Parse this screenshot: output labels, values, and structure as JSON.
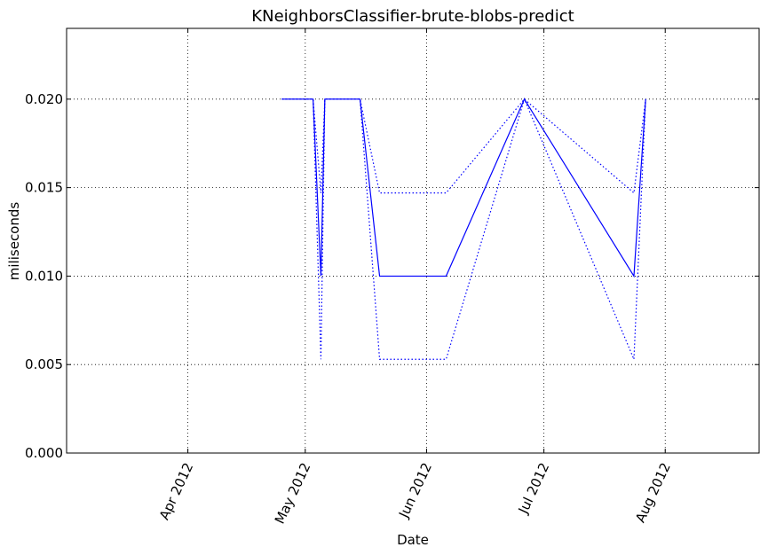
{
  "chart_data": {
    "type": "line",
    "title": "KNeighborsClassifier-brute-blobs-predict",
    "xlabel": "Date",
    "ylabel": "miliseconds",
    "xlim": [
      "2012-03-01",
      "2012-08-25"
    ],
    "ylim": [
      0,
      0.024
    ],
    "grid": true,
    "x_tick_labels": [
      {
        "date": "2012-04-01",
        "label": "Apr 2012"
      },
      {
        "date": "2012-05-01",
        "label": "May 2012"
      },
      {
        "date": "2012-06-01",
        "label": "Jun 2012"
      },
      {
        "date": "2012-07-01",
        "label": "Jul 2012"
      },
      {
        "date": "2012-08-01",
        "label": "Aug 2012"
      }
    ],
    "y_ticks": [
      {
        "value": 0.0,
        "label": "0.000"
      },
      {
        "value": 0.005,
        "label": "0.005"
      },
      {
        "value": 0.01,
        "label": "0.010"
      },
      {
        "value": 0.015,
        "label": "0.015"
      },
      {
        "value": 0.02,
        "label": "0.020"
      }
    ],
    "series": [
      {
        "style": "solid",
        "color": "#0000ff",
        "x": [
          "2012-04-25",
          "2012-05-03",
          "2012-05-05",
          "2012-05-06",
          "2012-05-15",
          "2012-05-20",
          "2012-06-06",
          "2012-06-26",
          "2012-07-24",
          "2012-07-27"
        ],
        "y": [
          0.02,
          0.02,
          0.01,
          0.02,
          0.02,
          0.01,
          0.01,
          0.02,
          0.01,
          0.02
        ]
      },
      {
        "style": "dotted",
        "color": "#0000ff",
        "x": [
          "2012-04-25",
          "2012-05-03",
          "2012-05-05",
          "2012-05-06",
          "2012-05-15",
          "2012-05-20",
          "2012-06-06",
          "2012-06-26",
          "2012-07-24",
          "2012-07-27"
        ],
        "y": [
          0.02,
          0.02,
          0.0147,
          0.02,
          0.02,
          0.0147,
          0.0147,
          0.02,
          0.0147,
          0.02
        ]
      },
      {
        "style": "dotted",
        "color": "#0000ff",
        "x": [
          "2012-04-25",
          "2012-05-03",
          "2012-05-05",
          "2012-05-06",
          "2012-05-15",
          "2012-05-20",
          "2012-06-06",
          "2012-06-26",
          "2012-07-24",
          "2012-07-27"
        ],
        "y": [
          0.02,
          0.02,
          0.0053,
          0.02,
          0.02,
          0.0053,
          0.0053,
          0.02,
          0.0053,
          0.02
        ]
      }
    ]
  }
}
